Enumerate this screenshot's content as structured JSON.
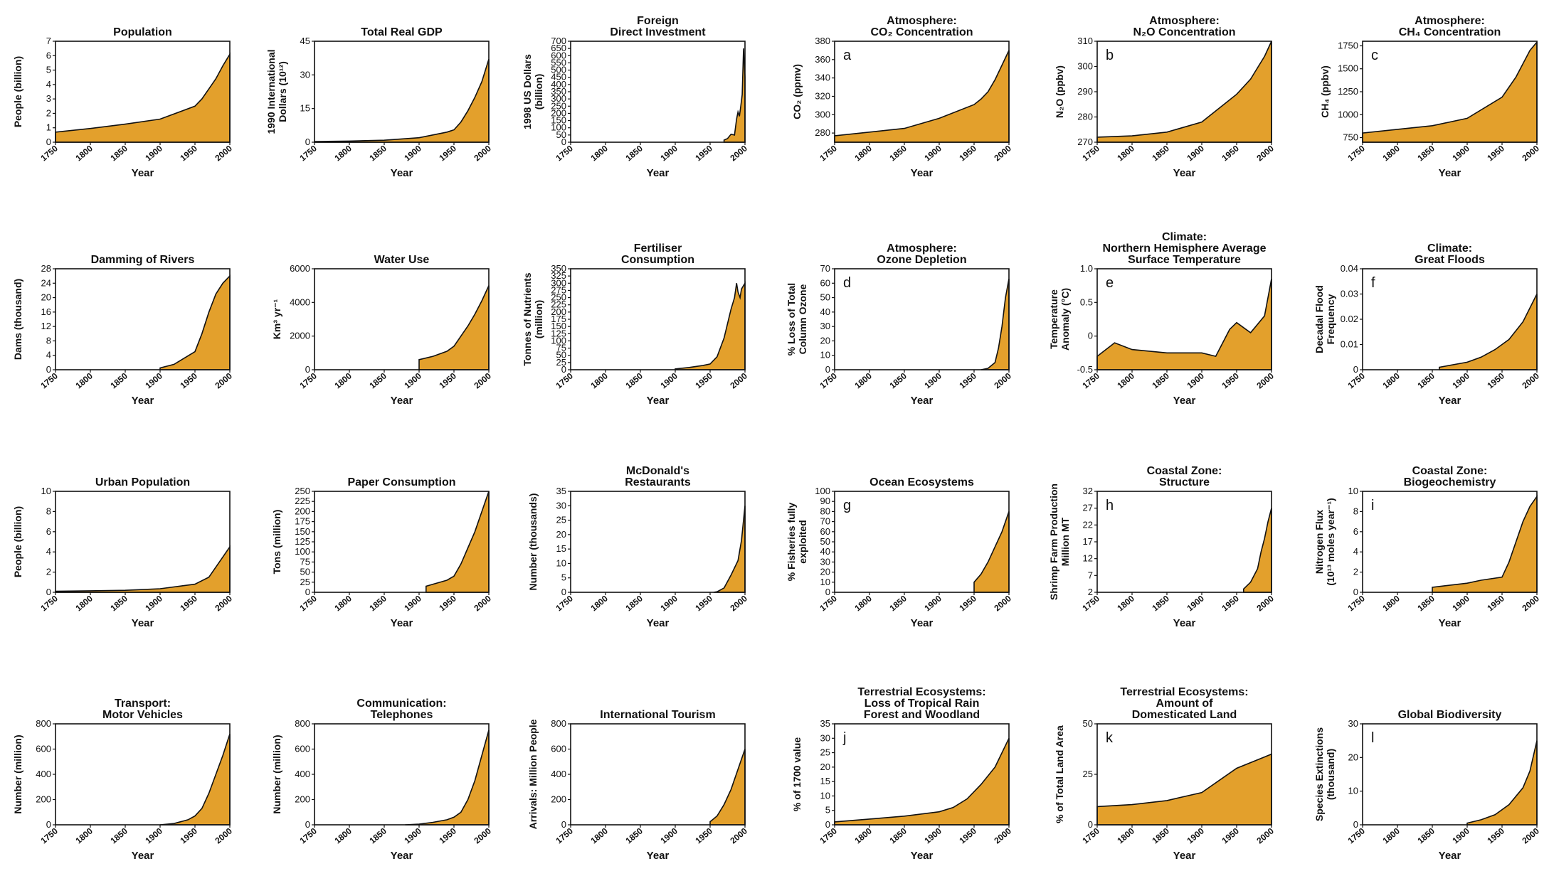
{
  "colors": {
    "fill": "#E3A02C",
    "line": "#111111"
  },
  "chart_data": [
    {
      "type": "area",
      "title": [
        "Population"
      ],
      "ylabel": [
        "People (billion)"
      ],
      "xlabel": "Year",
      "xlim": [
        1750,
        2000
      ],
      "ylim": [
        0,
        7
      ],
      "yticks": [
        "0",
        "1",
        "2",
        "3",
        "4",
        "5",
        "6",
        "7"
      ],
      "xticks": [
        "1750",
        "1800",
        "1850",
        "1900",
        "1950",
        "2000"
      ],
      "x": [
        1750,
        1800,
        1850,
        1900,
        1950,
        1960,
        1970,
        1980,
        1990,
        2000
      ],
      "y": [
        0.7,
        0.95,
        1.25,
        1.6,
        2.5,
        3.0,
        3.7,
        4.4,
        5.3,
        6.1
      ]
    },
    {
      "type": "area",
      "title": [
        "Total Real GDP"
      ],
      "ylabel": [
        "1990 International",
        "Dollars (10¹²)"
      ],
      "xlabel": "Year",
      "xlim": [
        1750,
        2000
      ],
      "ylim": [
        0,
        45
      ],
      "yticks": [
        "0",
        "15",
        "30",
        "45"
      ],
      "xticks": [
        "1750",
        "1800",
        "1850",
        "1900",
        "1950",
        "2000"
      ],
      "x": [
        1750,
        1800,
        1850,
        1900,
        1940,
        1950,
        1960,
        1970,
        1980,
        1990,
        2000
      ],
      "y": [
        0.3,
        0.5,
        0.9,
        2.0,
        4.5,
        5.5,
        9,
        14,
        20,
        27,
        37
      ]
    },
    {
      "type": "area",
      "title": [
        "Foreign",
        "Direct Investment"
      ],
      "ylabel": [
        "1998 US Dollars",
        "(billion)"
      ],
      "xlabel": "Year",
      "xlim": [
        1750,
        2000
      ],
      "ylim": [
        0,
        700
      ],
      "yticks": [
        "0",
        "50",
        "100",
        "150",
        "200",
        "250",
        "300",
        "350",
        "400",
        "450",
        "500",
        "550",
        "600",
        "650",
        "700"
      ],
      "xticks": [
        "1750",
        "1800",
        "1850",
        "1900",
        "1950",
        "2000"
      ],
      "x": [
        1970,
        1975,
        1980,
        1985,
        1988,
        1990,
        1992,
        1994,
        1996,
        1998,
        2000
      ],
      "y": [
        15,
        25,
        55,
        50,
        160,
        210,
        180,
        250,
        330,
        650,
        450
      ]
    },
    {
      "type": "area",
      "title": [
        "Atmosphere:",
        "CO₂ Concentration"
      ],
      "ylabel": [
        "CO₂ (ppmv)"
      ],
      "xlabel": "Year",
      "letter": "a",
      "xlim": [
        1750,
        2000
      ],
      "ylim": [
        270,
        380
      ],
      "yticks": [
        "280",
        "300",
        "320",
        "340",
        "360",
        "380"
      ],
      "xticks": [
        "1750",
        "1800",
        "1850",
        "1900",
        "1950",
        "2000"
      ],
      "x": [
        1750,
        1800,
        1850,
        1900,
        1950,
        1960,
        1970,
        1980,
        1990,
        2000
      ],
      "y": [
        277,
        281,
        285,
        296,
        311,
        317,
        325,
        338,
        354,
        370
      ]
    },
    {
      "type": "area",
      "title": [
        "Atmosphere:",
        "N₂O Concentration"
      ],
      "ylabel": [
        "N₂O (ppbv)"
      ],
      "xlabel": "Year",
      "letter": "b",
      "xlim": [
        1750,
        2000
      ],
      "ylim": [
        270,
        310
      ],
      "yticks": [
        "270",
        "280",
        "290",
        "300",
        "310"
      ],
      "xticks": [
        "1750",
        "1800",
        "1850",
        "1900",
        "1950",
        "2000"
      ],
      "x": [
        1750,
        1800,
        1850,
        1900,
        1950,
        1970,
        1990,
        2000
      ],
      "y": [
        272,
        272.5,
        274,
        278,
        289,
        295,
        304,
        310
      ]
    },
    {
      "type": "area",
      "title": [
        "Atmosphere:",
        "CH₄ Concentration"
      ],
      "ylabel": [
        "CH₄ (ppbv)"
      ],
      "xlabel": "Year",
      "letter": "c",
      "xlim": [
        1750,
        2000
      ],
      "ylim": [
        700,
        1800
      ],
      "yticks": [
        "750",
        "1000",
        "1250",
        "1500",
        "1750"
      ],
      "xticks": [
        "1750",
        "1800",
        "1850",
        "1900",
        "1950",
        "2000"
      ],
      "x": [
        1750,
        1800,
        1850,
        1900,
        1950,
        1970,
        1990,
        2000
      ],
      "y": [
        800,
        840,
        880,
        960,
        1190,
        1410,
        1700,
        1790
      ]
    },
    {
      "type": "area",
      "title": [
        "Damming of Rivers"
      ],
      "ylabel": [
        "Dams (thousand)"
      ],
      "xlabel": "Year",
      "xlim": [
        1750,
        2000
      ],
      "ylim": [
        0,
        28
      ],
      "yticks": [
        "0",
        "4",
        "8",
        "12",
        "16",
        "20",
        "24",
        "28"
      ],
      "xticks": [
        "1750",
        "1800",
        "1850",
        "1900",
        "1950",
        "2000"
      ],
      "x": [
        1900,
        1920,
        1950,
        1960,
        1970,
        1980,
        1990,
        2000
      ],
      "y": [
        0.5,
        1.5,
        5,
        10,
        16,
        21,
        24,
        26
      ]
    },
    {
      "type": "area",
      "title": [
        "Water Use"
      ],
      "ylabel": [
        "Km³ yr⁻¹"
      ],
      "xlabel": "Year",
      "xlim": [
        1750,
        2000
      ],
      "ylim": [
        0,
        6000
      ],
      "yticks": [
        "0",
        "2000",
        "4000",
        "6000"
      ],
      "xticks": [
        "1750",
        "1800",
        "1850",
        "1900",
        "1950",
        "2000"
      ],
      "x": [
        1900,
        1920,
        1940,
        1950,
        1960,
        1970,
        1980,
        1990,
        2000
      ],
      "y": [
        600,
        800,
        1100,
        1400,
        2000,
        2600,
        3300,
        4100,
        5000
      ]
    },
    {
      "type": "area",
      "title": [
        "Fertiliser",
        "Consumption"
      ],
      "ylabel": [
        "Tonnes of Nutrients",
        "(million)"
      ],
      "xlabel": "Year",
      "xlim": [
        1750,
        2000
      ],
      "ylim": [
        0,
        350
      ],
      "yticks": [
        "0",
        "25",
        "50",
        "75",
        "100",
        "125",
        "150",
        "175",
        "200",
        "225",
        "250",
        "275",
        "300",
        "325",
        "350"
      ],
      "xticks": [
        "1750",
        "1800",
        "1850",
        "1900",
        "1950",
        "2000"
      ],
      "x": [
        1900,
        1920,
        1940,
        1950,
        1960,
        1970,
        1980,
        1985,
        1988,
        1990,
        1993,
        1995,
        2000
      ],
      "y": [
        3,
        8,
        15,
        20,
        45,
        110,
        210,
        250,
        300,
        270,
        250,
        280,
        300
      ]
    },
    {
      "type": "area",
      "title": [
        "Atmosphere:",
        "Ozone Depletion"
      ],
      "ylabel": [
        "% Loss of Total",
        "Column Ozone"
      ],
      "xlabel": "Year",
      "letter": "d",
      "xlim": [
        1750,
        2000
      ],
      "ylim": [
        0,
        70
      ],
      "yticks": [
        "0",
        "10",
        "20",
        "30",
        "40",
        "50",
        "60",
        "70"
      ],
      "xticks": [
        "1750",
        "1800",
        "1850",
        "1900",
        "1950",
        "2000"
      ],
      "x": [
        1960,
        1970,
        1980,
        1985,
        1990,
        1995,
        2000
      ],
      "y": [
        0,
        1,
        5,
        15,
        30,
        50,
        63
      ]
    },
    {
      "type": "area",
      "title": [
        "Climate:",
        "Northern Hemisphere Average",
        "Surface Temperature"
      ],
      "ylabel": [
        "Temperature",
        "Anomaly (°C)"
      ],
      "xlabel": "Year",
      "letter": "e",
      "xlim": [
        1750,
        2000
      ],
      "ylim": [
        -0.5,
        1.0
      ],
      "yticks": [
        "-0.5",
        "0",
        "0.5",
        "1.0"
      ],
      "xticks": [
        "1750",
        "1800",
        "1850",
        "1900",
        "1950",
        "2000"
      ],
      "x": [
        1750,
        1775,
        1800,
        1850,
        1900,
        1920,
        1940,
        1950,
        1970,
        1990,
        2000
      ],
      "y": [
        -0.3,
        -0.1,
        -0.2,
        -0.25,
        -0.25,
        -0.3,
        0.1,
        0.2,
        0.05,
        0.3,
        0.85
      ]
    },
    {
      "type": "area",
      "title": [
        "Climate:",
        "Great Floods"
      ],
      "ylabel": [
        "Decadal Flood",
        "Frequency"
      ],
      "xlabel": "Year",
      "letter": "f",
      "xlim": [
        1750,
        2000
      ],
      "ylim": [
        0,
        0.04
      ],
      "yticks": [
        "0",
        "0.01",
        "0.02",
        "0.03",
        "0.04"
      ],
      "xticks": [
        "1750",
        "1800",
        "1850",
        "1900",
        "1950",
        "2000"
      ],
      "x": [
        1860,
        1900,
        1920,
        1940,
        1960,
        1980,
        2000
      ],
      "y": [
        0.001,
        0.003,
        0.005,
        0.008,
        0.012,
        0.019,
        0.03
      ]
    },
    {
      "type": "area",
      "title": [
        "Urban Population"
      ],
      "ylabel": [
        "People (billion)"
      ],
      "xlabel": "Year",
      "xlim": [
        1750,
        2000
      ],
      "ylim": [
        0,
        10
      ],
      "yticks": [
        "0",
        "2",
        "4",
        "6",
        "8",
        "10"
      ],
      "xticks": [
        "1750",
        "1800",
        "1850",
        "1900",
        "1950",
        "2000"
      ],
      "x": [
        1750,
        1800,
        1850,
        1900,
        1950,
        1970,
        1990,
        2000
      ],
      "y": [
        0.1,
        0.15,
        0.2,
        0.35,
        0.8,
        1.5,
        3.5,
        4.5
      ]
    },
    {
      "type": "area",
      "title": [
        "Paper Consumption"
      ],
      "ylabel": [
        "Tons (million)"
      ],
      "xlabel": "Year",
      "xlim": [
        1750,
        2000
      ],
      "ylim": [
        0,
        250
      ],
      "yticks": [
        "0",
        "25",
        "50",
        "75",
        "100",
        "125",
        "150",
        "175",
        "200",
        "225",
        "250"
      ],
      "xticks": [
        "1750",
        "1800",
        "1850",
        "1900",
        "1950",
        "2000"
      ],
      "x": [
        1910,
        1920,
        1940,
        1950,
        1960,
        1970,
        1980,
        1990,
        2000
      ],
      "y": [
        15,
        20,
        30,
        40,
        70,
        110,
        150,
        200,
        250
      ]
    },
    {
      "type": "area",
      "title": [
        "McDonald's",
        "Restaurants"
      ],
      "ylabel": [
        "Number (thousands)"
      ],
      "xlabel": "Year",
      "xlim": [
        1750,
        2000
      ],
      "ylim": [
        0,
        35
      ],
      "yticks": [
        "0",
        "5",
        "10",
        "15",
        "20",
        "25",
        "30",
        "35"
      ],
      "xticks": [
        "1750",
        "1800",
        "1850",
        "1900",
        "1950",
        "2000"
      ],
      "x": [
        1955,
        1960,
        1970,
        1980,
        1990,
        1995,
        2000
      ],
      "y": [
        0,
        0.2,
        1.5,
        6,
        11,
        18,
        30
      ]
    },
    {
      "type": "area",
      "title": [
        "Ocean Ecosystems"
      ],
      "ylabel": [
        "% Fisheries fully",
        "exploited"
      ],
      "xlabel": "Year",
      "letter": "g",
      "xlim": [
        1750,
        2000
      ],
      "ylim": [
        0,
        100
      ],
      "yticks": [
        "0",
        "10",
        "20",
        "30",
        "40",
        "50",
        "60",
        "70",
        "80",
        "90",
        "100"
      ],
      "xticks": [
        "1750",
        "1800",
        "1850",
        "1900",
        "1950",
        "2000"
      ],
      "x": [
        1950,
        1960,
        1970,
        1980,
        1990,
        2000
      ],
      "y": [
        10,
        18,
        30,
        45,
        60,
        80
      ]
    },
    {
      "type": "area",
      "title": [
        "Coastal Zone:",
        "Structure"
      ],
      "ylabel": [
        "Shrimp Farm Production",
        "Million MT"
      ],
      "xlabel": "Year",
      "letter": "h",
      "xlim": [
        1750,
        2000
      ],
      "ylim": [
        2,
        32
      ],
      "yticks": [
        "2",
        "7",
        "12",
        "17",
        "22",
        "27",
        "32"
      ],
      "xticks": [
        "1750",
        "1800",
        "1850",
        "1900",
        "1950",
        "2000"
      ],
      "x": [
        1960,
        1970,
        1980,
        1985,
        1990,
        1995,
        2000
      ],
      "y": [
        3,
        5,
        9,
        14,
        18,
        23,
        27
      ]
    },
    {
      "type": "area",
      "title": [
        "Coastal Zone:",
        "Biogeochemistry"
      ],
      "ylabel": [
        "Nitrogen Flux",
        "(10¹³ moles year⁻¹)"
      ],
      "xlabel": "Year",
      "letter": "i",
      "xlim": [
        1750,
        2000
      ],
      "ylim": [
        0,
        10
      ],
      "yticks": [
        "0",
        "2",
        "4",
        "6",
        "8",
        "10"
      ],
      "xticks": [
        "1750",
        "1800",
        "1850",
        "1900",
        "1950",
        "2000"
      ],
      "x": [
        1850,
        1900,
        1920,
        1950,
        1960,
        1970,
        1980,
        1990,
        2000
      ],
      "y": [
        0.5,
        0.9,
        1.2,
        1.5,
        3,
        5,
        7,
        8.5,
        9.5
      ]
    },
    {
      "type": "area",
      "title": [
        "Transport:",
        "Motor Vehicles"
      ],
      "ylabel": [
        "Number (million)"
      ],
      "xlabel": "Year",
      "xlim": [
        1750,
        2000
      ],
      "ylim": [
        0,
        800
      ],
      "yticks": [
        "0",
        "200",
        "400",
        "600",
        "800"
      ],
      "xticks": [
        "1750",
        "1800",
        "1850",
        "1900",
        "1950",
        "2000"
      ],
      "x": [
        1900,
        1920,
        1940,
        1950,
        1960,
        1970,
        1980,
        1990,
        2000
      ],
      "y": [
        0,
        10,
        40,
        70,
        130,
        250,
        400,
        550,
        720
      ]
    },
    {
      "type": "area",
      "title": [
        "Communication:",
        "Telephones"
      ],
      "ylabel": [
        "Number (million)"
      ],
      "xlabel": "Year",
      "xlim": [
        1750,
        2000
      ],
      "ylim": [
        0,
        800
      ],
      "yticks": [
        "0",
        "200",
        "400",
        "600",
        "800"
      ],
      "xticks": [
        "1750",
        "1800",
        "1850",
        "1900",
        "1950",
        "2000"
      ],
      "x": [
        1880,
        1900,
        1920,
        1940,
        1950,
        1960,
        1970,
        1980,
        1990,
        2000
      ],
      "y": [
        0,
        5,
        20,
        40,
        60,
        100,
        200,
        350,
        550,
        750
      ]
    },
    {
      "type": "area",
      "title": [
        "International Tourism"
      ],
      "ylabel": [
        "Arrivals: Million People"
      ],
      "xlabel": "Year",
      "xlim": [
        1750,
        2000
      ],
      "ylim": [
        0,
        800
      ],
      "yticks": [
        "0",
        "200",
        "400",
        "600",
        "800"
      ],
      "xticks": [
        "1750",
        "1800",
        "1850",
        "1900",
        "1950",
        "2000"
      ],
      "x": [
        1950,
        1960,
        1970,
        1980,
        1990,
        2000
      ],
      "y": [
        25,
        70,
        160,
        280,
        440,
        600
      ]
    },
    {
      "type": "area",
      "title": [
        "Terrestrial Ecosystems:",
        "Loss of Tropical Rain",
        "Forest and Woodland"
      ],
      "ylabel": [
        "% of 1700 value"
      ],
      "xlabel": "Year",
      "letter": "j",
      "xlim": [
        1750,
        2000
      ],
      "ylim": [
        0,
        35
      ],
      "yticks": [
        "0",
        "5",
        "10",
        "15",
        "20",
        "25",
        "30",
        "35"
      ],
      "xticks": [
        "1750",
        "1800",
        "1850",
        "1900",
        "1950",
        "2000"
      ],
      "x": [
        1750,
        1800,
        1850,
        1900,
        1920,
        1940,
        1960,
        1980,
        2000
      ],
      "y": [
        1,
        2,
        3,
        4.5,
        6,
        9,
        14,
        20,
        30
      ]
    },
    {
      "type": "area",
      "title": [
        "Terrestrial Ecosystems:",
        "Amount of",
        "Domesticated Land"
      ],
      "ylabel": [
        "% of Total Land Area"
      ],
      "xlabel": "Year",
      "letter": "k",
      "xlim": [
        1750,
        2000
      ],
      "ylim": [
        0,
        50
      ],
      "yticks": [
        "0",
        "25",
        "50"
      ],
      "xticks": [
        "1750",
        "1800",
        "1850",
        "1900",
        "1950",
        "2000"
      ],
      "x": [
        1750,
        1800,
        1850,
        1900,
        1950,
        2000
      ],
      "y": [
        9,
        10,
        12,
        16,
        28,
        35
      ]
    },
    {
      "type": "area",
      "title": [
        "Global Biodiversity"
      ],
      "ylabel": [
        "Species Extinctions",
        "(thousand)"
      ],
      "xlabel": "Year",
      "letter": "l",
      "xlim": [
        1750,
        2000
      ],
      "ylim": [
        0,
        30
      ],
      "yticks": [
        "0",
        "10",
        "20",
        "30"
      ],
      "xticks": [
        "1750",
        "1800",
        "1850",
        "1900",
        "1950",
        "2000"
      ],
      "x": [
        1900,
        1920,
        1940,
        1960,
        1980,
        1990,
        2000
      ],
      "y": [
        0.5,
        1.5,
        3,
        6,
        11,
        16,
        25
      ]
    }
  ]
}
